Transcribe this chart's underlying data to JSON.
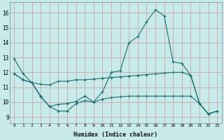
{
  "xlabel": "Humidex (Indice chaleur)",
  "bg_color": "#c8eaea",
  "grid_color": "#c8a8a8",
  "line_color": "#1a6e6e",
  "xlim": [
    -0.5,
    23.5
  ],
  "ylim": [
    8.6,
    16.7
  ],
  "yticks": [
    9,
    10,
    11,
    12,
    13,
    14,
    15,
    16
  ],
  "xticks": [
    0,
    1,
    2,
    3,
    4,
    5,
    6,
    7,
    8,
    9,
    10,
    11,
    12,
    13,
    14,
    15,
    16,
    17,
    18,
    19,
    20,
    21,
    22,
    23
  ],
  "series1_x": [
    0,
    1,
    2,
    3,
    4,
    5,
    6,
    7,
    8,
    9,
    10,
    11,
    12,
    13,
    14,
    15,
    16,
    17,
    18,
    19,
    20,
    21,
    22,
    23
  ],
  "series1_y": [
    12.9,
    11.9,
    11.3,
    10.4,
    9.7,
    9.4,
    9.4,
    9.9,
    10.1,
    10.0,
    10.7,
    12.0,
    12.1,
    14.0,
    14.4,
    15.4,
    16.2,
    15.8,
    12.7,
    12.6,
    11.8,
    9.9,
    9.2,
    9.4
  ],
  "series2_x": [
    0,
    1,
    2,
    3,
    4,
    5,
    6,
    7,
    8,
    9,
    10,
    11,
    12,
    13,
    14,
    15,
    16,
    17,
    18,
    19,
    20,
    21,
    22,
    23
  ],
  "series2_y": [
    11.9,
    11.5,
    11.3,
    11.2,
    11.15,
    11.4,
    11.4,
    11.5,
    11.5,
    11.55,
    11.6,
    11.65,
    11.7,
    11.75,
    11.8,
    11.85,
    11.9,
    11.95,
    12.0,
    12.0,
    11.8,
    9.9,
    9.2,
    9.4
  ],
  "series3_x": [
    0,
    1,
    2,
    3,
    4,
    5,
    6,
    7,
    8,
    9,
    10,
    11,
    12,
    13,
    14,
    15,
    16,
    17,
    18,
    19,
    20,
    21,
    22,
    23
  ],
  "series3_y": [
    11.9,
    11.5,
    11.3,
    10.35,
    9.7,
    9.85,
    9.9,
    10.05,
    10.4,
    10.0,
    10.2,
    10.3,
    10.35,
    10.4,
    10.4,
    10.4,
    10.4,
    10.4,
    10.4,
    10.4,
    10.4,
    9.9,
    9.2,
    9.4
  ]
}
